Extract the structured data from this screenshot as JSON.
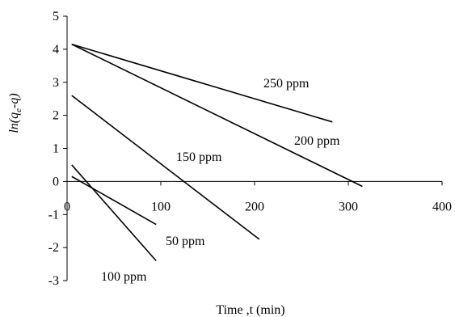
{
  "chart_data": {
    "type": "line",
    "title": "",
    "xlabel": "Time ,t (min)",
    "ylabel": "ln(qe-q)",
    "xlim": [
      0,
      400
    ],
    "ylim": [
      -3,
      5
    ],
    "x_ticks": [
      0,
      100,
      200,
      300,
      400
    ],
    "y_ticks": [
      -3,
      -2,
      -1,
      0,
      1,
      2,
      3,
      4,
      5
    ],
    "grid": false,
    "legend": "none",
    "series": [
      {
        "name": "250 ppm",
        "x": [
          5,
          283
        ],
        "y": [
          4.15,
          1.8
        ]
      },
      {
        "name": "200 ppm",
        "x": [
          5,
          315
        ],
        "y": [
          4.15,
          -0.15
        ]
      },
      {
        "name": "150 ppm",
        "x": [
          5,
          205
        ],
        "y": [
          2.6,
          -1.75
        ]
      },
      {
        "name": "100 ppm",
        "x": [
          5,
          95
        ],
        "y": [
          0.5,
          -2.4
        ]
      },
      {
        "name": "50 ppm",
        "x": [
          5,
          95
        ],
        "y": [
          0.15,
          -1.3
        ]
      }
    ]
  }
}
